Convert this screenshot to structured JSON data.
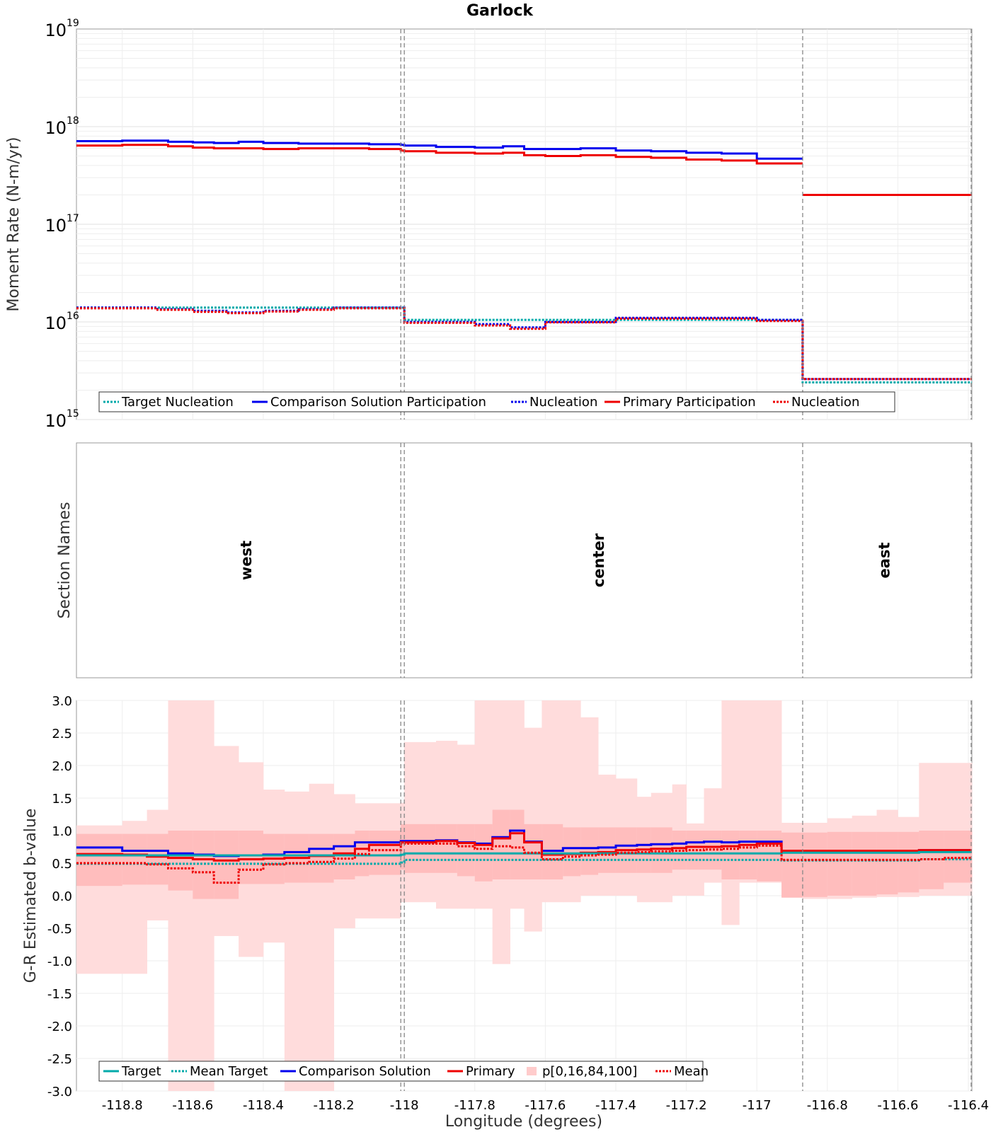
{
  "chart_data": [
    {
      "type": "line",
      "panel": "moment-rate",
      "title": "Garlock",
      "ylabel": "Moment Rate (N-m/yr)",
      "yscale": "log",
      "ylim": [
        1000000000000000.0,
        1e+19
      ],
      "xlim": [
        -118.93,
        -116.39
      ],
      "ytick_labels": [
        {
          "base": "10",
          "exp": "19",
          "value": 1e+19
        },
        {
          "base": "10",
          "exp": "18",
          "value": 1e+18
        },
        {
          "base": "10",
          "exp": "17",
          "value": 1e+17
        },
        {
          "base": "10",
          "exp": "16",
          "value": 1e+16
        },
        {
          "base": "10",
          "exp": "15",
          "value": 1000000000000000.0
        }
      ],
      "section_boundaries": [
        -118.01,
        -118.0,
        -116.87
      ],
      "legend": [
        "Target Nucleation",
        "Comparison Solution Participation",
        "Nucleation",
        "Primary Participation",
        "Nucleation"
      ],
      "series": [
        {
          "name": "Comparison Solution Participation",
          "color": "#0000ee",
          "style": "solid",
          "x": [
            -118.93,
            -118.8,
            -118.67,
            -118.6,
            -118.54,
            -118.47,
            -118.4,
            -118.3,
            -118.2,
            -118.1,
            -118.01,
            -118.0,
            -117.91,
            -117.8,
            -117.72,
            -117.66,
            -117.6,
            -117.5,
            -117.4,
            -117.3,
            -117.2,
            -117.1,
            -117.0,
            -116.87,
            -116.87,
            -116.39
          ],
          "values": [
            7.1e+17,
            7.2e+17,
            7e+17,
            6.9e+17,
            6.8e+17,
            7e+17,
            6.8e+17,
            6.7e+17,
            6.7e+17,
            6.6e+17,
            6.5e+17,
            6.4e+17,
            6.2e+17,
            6.1e+17,
            6.3e+17,
            5.9e+17,
            5.9e+17,
            6e+17,
            5.7e+17,
            5.6e+17,
            5.4e+17,
            5.3e+17,
            4.7e+17,
            null,
            2e+17,
            1.8e+17
          ]
        },
        {
          "name": "Primary Participation",
          "color": "#ee0000",
          "style": "solid",
          "x": [
            -118.93,
            -118.8,
            -118.67,
            -118.6,
            -118.54,
            -118.47,
            -118.4,
            -118.3,
            -118.2,
            -118.1,
            -118.01,
            -118.0,
            -117.91,
            -117.8,
            -117.72,
            -117.66,
            -117.6,
            -117.5,
            -117.4,
            -117.3,
            -117.2,
            -117.1,
            -117.0,
            -116.87,
            -116.87,
            -116.39
          ],
          "values": [
            6.4e+17,
            6.5e+17,
            6.3e+17,
            6.1e+17,
            6e+17,
            6e+17,
            5.9e+17,
            6e+17,
            6e+17,
            5.9e+17,
            5.7e+17,
            5.6e+17,
            5.4e+17,
            5.3e+17,
            5.4e+17,
            5.1e+17,
            5e+17,
            5.1e+17,
            4.9e+17,
            4.8e+17,
            4.6e+17,
            4.5e+17,
            4.2e+17,
            null,
            2e+17,
            1.8e+17
          ]
        },
        {
          "name": "Target Nucleation",
          "color": "#00aaaa",
          "style": "dotted",
          "x": [
            -118.93,
            -118.01,
            -118.0,
            -116.87,
            -116.87,
            -116.39
          ],
          "values": [
            1.4e+16,
            1.4e+16,
            1.05e+16,
            1e+16,
            2400000000000000.0,
            2350000000000000.0
          ]
        },
        {
          "name": "Nucleation",
          "color": "#0000ee",
          "style": "dotted",
          "x": [
            -118.93,
            -118.7,
            -118.6,
            -118.5,
            -118.4,
            -118.3,
            -118.2,
            -118.01,
            -118.0,
            -117.8,
            -117.7,
            -117.6,
            -117.4,
            -117.2,
            -117.0,
            -116.87,
            -116.87,
            -116.39
          ],
          "values": [
            1.4e+16,
            1.35e+16,
            1.3e+16,
            1.25e+16,
            1.3e+16,
            1.35e+16,
            1.4e+16,
            1.4e+16,
            1e+16,
            9500000000000000.0,
            8800000000000000.0,
            1e+16,
            1.1e+16,
            1.1e+16,
            1.05e+16,
            1e+16,
            2600000000000000.0,
            2400000000000000.0
          ]
        },
        {
          "name": "Nucleation",
          "color": "#ee0000",
          "style": "dotted",
          "x": [
            -118.93,
            -118.7,
            -118.6,
            -118.5,
            -118.4,
            -118.3,
            -118.2,
            -118.01,
            -118.0,
            -117.8,
            -117.7,
            -117.6,
            -117.4,
            -117.2,
            -117.0,
            -116.87,
            -116.87,
            -116.39
          ],
          "values": [
            1.38e+16,
            1.33e+16,
            1.27e+16,
            1.23e+16,
            1.28e+16,
            1.33e+16,
            1.38e+16,
            1.38e+16,
            9800000000000000.0,
            9200000000000000.0,
            8500000000000000.0,
            9900000000000000.0,
            1.08e+16,
            1.08e+16,
            1.02e+16,
            9900000000000000.0,
            2600000000000000.0,
            2380000000000000.0
          ]
        }
      ]
    },
    {
      "type": "table",
      "panel": "section-names",
      "ylabel": "Section Names",
      "sections": [
        {
          "name": "west",
          "x_center": -118.45
        },
        {
          "name": "center",
          "x_center": -117.45
        },
        {
          "name": "east",
          "x_center": -116.64
        }
      ]
    },
    {
      "type": "line",
      "panel": "b-value",
      "xlabel": "Longitude (degrees)",
      "ylabel": "G-R Estimated b-value",
      "ylim": [
        -3.0,
        3.0
      ],
      "xlim": [
        -118.93,
        -116.39
      ],
      "xticks": [
        -118.8,
        -118.6,
        -118.4,
        -118.2,
        -118.0,
        -117.8,
        -117.6,
        -117.4,
        -117.2,
        -117.0,
        -116.8,
        -116.6,
        -116.4
      ],
      "xtick_labels": [
        "-118.8",
        "-118.6",
        "-118.4",
        "-118.2",
        "-118",
        "-117.8",
        "-117.6",
        "-117.4",
        "-117.2",
        "-117",
        "-116.8",
        "-116.6",
        "-116.4"
      ],
      "yticks": [
        3.0,
        2.5,
        2.0,
        1.5,
        1.0,
        0.5,
        0.0,
        -0.5,
        -1.0,
        -1.5,
        -2.0,
        -2.5,
        -3.0
      ],
      "ytick_labels": [
        "3.0",
        "2.5",
        "2.0",
        "1.5",
        "1.0",
        "0.5",
        "0.0",
        "-0.5",
        "-1.0",
        "-1.5",
        "-2.0",
        "-2.5",
        "-3.0"
      ],
      "legend": [
        "Target",
        "Mean Target",
        "Comparison Solution",
        "Primary",
        "p[0,16,84,100]",
        "Mean"
      ],
      "band_edges": [
        -118.93,
        -118.8,
        -118.73,
        -118.67,
        -118.6,
        -118.54,
        -118.47,
        -118.4,
        -118.34,
        -118.27,
        -118.2,
        -118.14,
        -118.1,
        -118.01,
        -118.0,
        -117.91,
        -117.85,
        -117.8,
        -117.75,
        -117.7,
        -117.66,
        -117.61,
        -117.55,
        -117.5,
        -117.45,
        -117.4,
        -117.34,
        -117.3,
        -117.24,
        -117.2,
        -117.15,
        -117.1,
        -117.05,
        -117.0,
        -116.93,
        -116.87,
        -116.8,
        -116.73,
        -116.66,
        -116.6,
        -116.54,
        -116.47,
        -116.39
      ],
      "outer_band_lo": [
        -1.2,
        -1.2,
        -0.38,
        -3.0,
        -3.0,
        -0.62,
        -0.94,
        -0.72,
        -3.0,
        -3.0,
        -0.5,
        -0.35,
        -0.35,
        -0.1,
        -0.1,
        -0.2,
        -0.2,
        -0.2,
        -1.05,
        -0.2,
        -0.55,
        -0.1,
        -0.1,
        0.0,
        0.0,
        0.0,
        -0.1,
        -0.1,
        0.0,
        0.0,
        0.2,
        -0.45,
        0.2,
        0.2,
        0.2,
        -0.05,
        -0.05,
        -0.03,
        -0.02,
        -0.02,
        0.0,
        0.0
      ],
      "outer_band_hi": [
        1.08,
        1.15,
        1.32,
        3.0,
        3.0,
        2.3,
        2.05,
        1.63,
        1.6,
        1.72,
        1.56,
        1.42,
        1.42,
        1.43,
        2.36,
        2.38,
        2.32,
        3.0,
        3.0,
        3.0,
        2.58,
        3.0,
        3.0,
        2.74,
        1.86,
        1.8,
        1.52,
        1.58,
        1.71,
        1.11,
        1.65,
        3.0,
        3.0,
        3.0,
        1.12,
        1.12,
        1.19,
        1.23,
        1.32,
        1.21,
        2.04,
        2.04
      ],
      "inner_band_lo": [
        0.15,
        0.17,
        0.17,
        0.08,
        -0.05,
        -0.05,
        0.18,
        0.18,
        0.2,
        0.2,
        0.25,
        0.3,
        0.32,
        0.4,
        0.35,
        0.35,
        0.3,
        0.22,
        0.25,
        0.25,
        0.25,
        0.25,
        0.3,
        0.32,
        0.35,
        0.35,
        0.35,
        0.35,
        0.4,
        0.4,
        0.4,
        0.25,
        0.25,
        0.22,
        -0.03,
        -0.02,
        0.0,
        0.0,
        0.02,
        0.05,
        0.1,
        0.2
      ],
      "inner_band_hi": [
        0.95,
        0.95,
        0.95,
        1.0,
        1.0,
        1.0,
        1.0,
        0.95,
        0.95,
        0.95,
        0.95,
        1.0,
        1.0,
        1.1,
        1.1,
        1.1,
        1.1,
        1.1,
        1.32,
        1.32,
        1.1,
        1.1,
        1.05,
        1.05,
        1.05,
        1.05,
        1.05,
        1.05,
        1.0,
        1.0,
        1.0,
        1.0,
        1.0,
        1.0,
        0.97,
        0.97,
        0.98,
        0.98,
        0.98,
        0.98,
        1.0,
        1.0
      ],
      "series": [
        {
          "name": "Comparison Solution",
          "color": "#0000ee",
          "style": "solid",
          "values": [
            0.74,
            0.69,
            0.69,
            0.65,
            0.63,
            0.61,
            0.62,
            0.63,
            0.67,
            0.72,
            0.76,
            0.82,
            0.82,
            0.84,
            0.84,
            0.85,
            0.82,
            0.8,
            0.9,
            1.0,
            0.83,
            0.69,
            0.73,
            0.73,
            0.74,
            0.77,
            0.78,
            0.79,
            0.8,
            0.82,
            0.83,
            0.82,
            0.83,
            0.83,
            0.68,
            0.68,
            0.68,
            0.69,
            0.69,
            0.69,
            0.7,
            0.7
          ]
        },
        {
          "name": "Primary",
          "color": "#ee0000",
          "style": "solid",
          "values": [
            0.64,
            0.63,
            0.6,
            0.58,
            0.56,
            0.54,
            0.56,
            0.57,
            0.58,
            0.61,
            0.65,
            0.72,
            0.78,
            0.82,
            0.82,
            0.84,
            0.81,
            0.78,
            0.88,
            0.96,
            0.82,
            0.63,
            0.64,
            0.66,
            0.67,
            0.7,
            0.71,
            0.72,
            0.73,
            0.75,
            0.75,
            0.76,
            0.78,
            0.8,
            0.69,
            0.69,
            0.69,
            0.69,
            0.69,
            0.69,
            0.7,
            0.7
          ]
        },
        {
          "name": "Target",
          "color": "#00aaaa",
          "style": "solid",
          "values": [
            0.62,
            0.62,
            0.62,
            0.62,
            0.62,
            0.62,
            0.62,
            0.62,
            0.62,
            0.62,
            0.62,
            0.62,
            0.62,
            0.63,
            0.65,
            0.65,
            0.65,
            0.65,
            0.65,
            0.65,
            0.65,
            0.65,
            0.65,
            0.65,
            0.65,
            0.65,
            0.65,
            0.65,
            0.65,
            0.65,
            0.65,
            0.65,
            0.65,
            0.65,
            0.66,
            0.66,
            0.66,
            0.66,
            0.66,
            0.66,
            0.67,
            0.67
          ]
        },
        {
          "name": "Mean Target",
          "color": "#00aaaa",
          "style": "dotted",
          "values": [
            0.49,
            0.49,
            0.49,
            0.49,
            0.49,
            0.49,
            0.49,
            0.49,
            0.49,
            0.49,
            0.49,
            0.49,
            0.49,
            0.51,
            0.55,
            0.55,
            0.55,
            0.55,
            0.55,
            0.55,
            0.55,
            0.55,
            0.55,
            0.55,
            0.55,
            0.55,
            0.55,
            0.55,
            0.55,
            0.55,
            0.55,
            0.55,
            0.55,
            0.55,
            0.54,
            0.54,
            0.54,
            0.54,
            0.54,
            0.54,
            0.56,
            0.56
          ]
        },
        {
          "name": "Mean",
          "color": "#ee0000",
          "style": "dotted",
          "values": [
            0.5,
            0.5,
            0.48,
            0.42,
            0.36,
            0.2,
            0.4,
            0.48,
            0.5,
            0.52,
            0.57,
            0.64,
            0.7,
            0.8,
            0.8,
            0.8,
            0.76,
            0.72,
            0.76,
            0.74,
            0.66,
            0.56,
            0.6,
            0.62,
            0.63,
            0.66,
            0.67,
            0.68,
            0.69,
            0.7,
            0.71,
            0.72,
            0.74,
            0.77,
            0.55,
            0.55,
            0.55,
            0.55,
            0.55,
            0.55,
            0.56,
            0.58
          ]
        }
      ]
    }
  ]
}
